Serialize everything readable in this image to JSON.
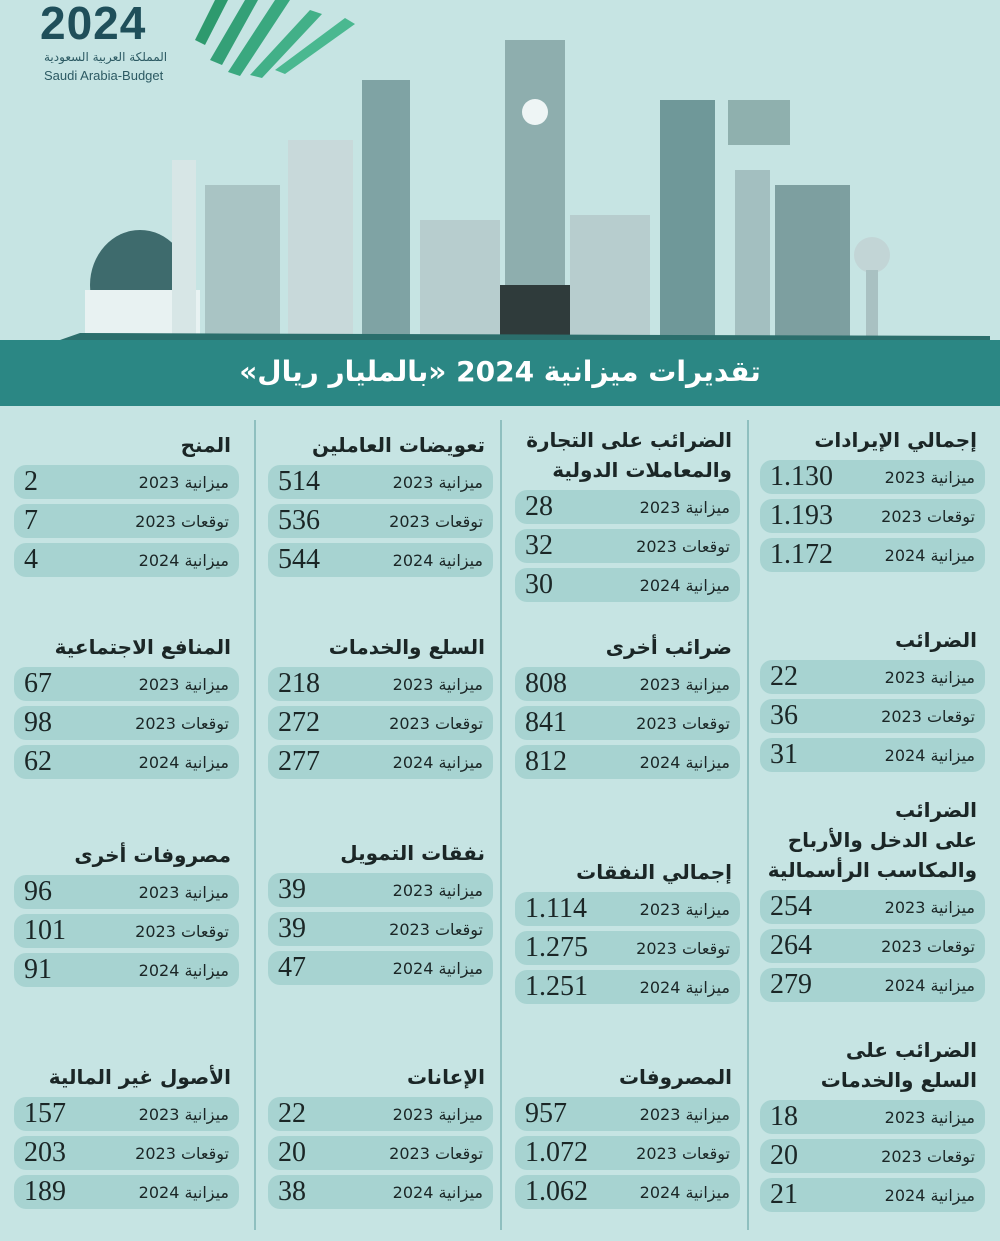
{
  "logo": {
    "year": "2024",
    "arabic": "المملكة العربية السعودية",
    "english": "Saudi Arabia-Budget"
  },
  "colors": {
    "background": "#c6e4e3",
    "band": "#2b8784",
    "pill": "#a7d3d1",
    "logo": "#1f4f5a",
    "accent_green": "#2e9a6e"
  },
  "header": {
    "title": "تقديرات ميزانية 2024 «بالمليار ريال»"
  },
  "columns": [
    {
      "sections": [
        {
          "title": "إجمالي الإيرادات",
          "rows": [
            {
              "label": "ميزانية 2023",
              "value": "1.130"
            },
            {
              "label": "توقعات 2023",
              "value": "1.193"
            },
            {
              "label": "ميزانية 2024",
              "value": "1.172"
            }
          ]
        },
        {
          "title": "الضرائب",
          "rows": [
            {
              "label": "ميزانية 2023",
              "value": "22"
            },
            {
              "label": "توقعات 2023",
              "value": "36"
            },
            {
              "label": "ميزانية 2024",
              "value": "31"
            }
          ]
        },
        {
          "title": "الضرائب\nعلى الدخل  والأرباح\nوالمكاسب الرأسمالية",
          "rows": [
            {
              "label": "ميزانية 2023",
              "value": "254"
            },
            {
              "label": "توقعات 2023",
              "value": "264"
            },
            {
              "label": "ميزانية 2024",
              "value": "279"
            }
          ]
        },
        {
          "title": "الضرائب على\nالسلع والخدمات",
          "rows": [
            {
              "label": "ميزانية 2023",
              "value": "18"
            },
            {
              "label": "توقعات 2023",
              "value": "20"
            },
            {
              "label": "ميزانية 2024",
              "value": "21"
            }
          ]
        }
      ]
    },
    {
      "sections": [
        {
          "title": "الضرائب على التجارة\nوالمعاملات الدولية",
          "rows": [
            {
              "label": "ميزانية 2023",
              "value": "28"
            },
            {
              "label": "توقعات 2023",
              "value": "32"
            },
            {
              "label": "ميزانية 2024",
              "value": "30"
            }
          ]
        },
        {
          "title": "ضرائب أخرى",
          "rows": [
            {
              "label": "ميزانية 2023",
              "value": "808"
            },
            {
              "label": "توقعات 2023",
              "value": "841"
            },
            {
              "label": "ميزانية 2024",
              "value": "812"
            }
          ]
        },
        {
          "title": "إجمالي النفقات",
          "rows": [
            {
              "label": "ميزانية 2023",
              "value": "1.114"
            },
            {
              "label": "توقعات 2023",
              "value": "1.275"
            },
            {
              "label": "ميزانية 2024",
              "value": "1.251"
            }
          ]
        },
        {
          "title": "المصروفات",
          "rows": [
            {
              "label": "ميزانية 2023",
              "value": "957"
            },
            {
              "label": "توقعات 2023",
              "value": "1.072"
            },
            {
              "label": "ميزانية 2024",
              "value": "1.062"
            }
          ]
        }
      ]
    },
    {
      "sections": [
        {
          "title": "تعويضات العاملين",
          "rows": [
            {
              "label": "ميزانية 2023",
              "value": "514"
            },
            {
              "label": "توقعات 2023",
              "value": "536"
            },
            {
              "label": "ميزانية 2024",
              "value": "544"
            }
          ]
        },
        {
          "title": "السلع والخدمات",
          "rows": [
            {
              "label": "ميزانية 2023",
              "value": "218"
            },
            {
              "label": "توقعات 2023",
              "value": "272"
            },
            {
              "label": "ميزانية 2024",
              "value": "277"
            }
          ]
        },
        {
          "title": "نفقات التمويل",
          "rows": [
            {
              "label": "ميزانية 2023",
              "value": "39"
            },
            {
              "label": "توقعات 2023",
              "value": "39"
            },
            {
              "label": "ميزانية 2024",
              "value": "47"
            }
          ]
        },
        {
          "title": "الإعانات",
          "rows": [
            {
              "label": "ميزانية 2023",
              "value": "22"
            },
            {
              "label": "توقعات 2023",
              "value": "20"
            },
            {
              "label": "ميزانية 2024",
              "value": "38"
            }
          ]
        }
      ]
    },
    {
      "sections": [
        {
          "title": "المنح",
          "rows": [
            {
              "label": "ميزانية 2023",
              "value": "2"
            },
            {
              "label": "توقعات 2023",
              "value": "7"
            },
            {
              "label": "ميزانية 2024",
              "value": "4"
            }
          ]
        },
        {
          "title": "المنافع الاجتماعية",
          "rows": [
            {
              "label": "ميزانية 2023",
              "value": "67"
            },
            {
              "label": "توقعات 2023",
              "value": "98"
            },
            {
              "label": "ميزانية 2024",
              "value": "62"
            }
          ]
        },
        {
          "title": "مصروفات أخرى",
          "rows": [
            {
              "label": "ميزانية 2023",
              "value": "96"
            },
            {
              "label": "توقعات 2023",
              "value": "101"
            },
            {
              "label": "ميزانية 2024",
              "value": "91"
            }
          ]
        },
        {
          "title": "الأصول غير المالية",
          "rows": [
            {
              "label": "ميزانية 2023",
              "value": "157"
            },
            {
              "label": "توقعات 2023",
              "value": "203"
            },
            {
              "label": "ميزانية 2024",
              "value": "189"
            }
          ]
        }
      ]
    }
  ]
}
